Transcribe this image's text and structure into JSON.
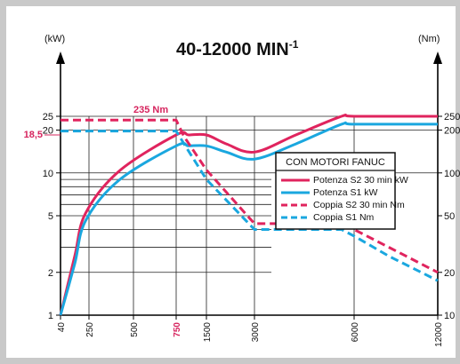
{
  "chart_data": {
    "type": "line",
    "title": "40-12000 MIN",
    "title_superscript": "-1",
    "left_axis_unit": "(kW)",
    "right_axis_unit": "(Nm)",
    "x_scale": "log",
    "x_ticks": [
      "40",
      "250",
      "500",
      "750",
      "1500",
      "3000",
      "6000",
      "12000"
    ],
    "highlight_x_tick": "750",
    "left_y_scale": "log",
    "left_y_ticks": [
      "1",
      "2",
      "5",
      "10",
      "20",
      "25"
    ],
    "left_y_highlight": "18,5",
    "right_y_ticks": [
      "10",
      "20",
      "50",
      "100",
      "200",
      "250"
    ],
    "annotation": "235 Nm",
    "legend_title": "CON MOTORI FANUC",
    "legend_position": "right",
    "grid": true,
    "series": [
      {
        "name": "Potenza S2 30 min kW",
        "axis": "left",
        "style": "solid",
        "color": "#e0245e",
        "x": [
          40,
          100,
          200,
          400,
          750,
          1000,
          1500,
          2000,
          3000,
          4000,
          5500,
          6000,
          12000
        ],
        "y": [
          1,
          2.6,
          5.2,
          10.3,
          18.5,
          18.5,
          18.5,
          16,
          14,
          18.5,
          25,
          25,
          25
        ]
      },
      {
        "name": "Potenza S1 kW",
        "axis": "left",
        "style": "solid",
        "color": "#1aa7df",
        "x": [
          40,
          100,
          200,
          400,
          750,
          1000,
          1500,
          2000,
          3000,
          4000,
          5500,
          6000,
          12000
        ],
        "y": [
          1,
          2.3,
          4.6,
          8.9,
          15.5,
          15.5,
          15.5,
          14,
          12.5,
          16,
          22,
          22,
          22
        ]
      },
      {
        "name": "Coppia S2 30 min Nm",
        "axis": "right",
        "style": "dashed",
        "color": "#e0245e",
        "x": [
          40,
          750,
          900,
          1500,
          3000,
          5500,
          6000,
          8000,
          12000
        ],
        "y": [
          235,
          235,
          180,
          105,
          44,
          44,
          40,
          30,
          20
        ]
      },
      {
        "name": "Coppia S1 Nm",
        "axis": "right",
        "style": "dashed",
        "color": "#1aa7df",
        "x": [
          40,
          750,
          900,
          1500,
          3000,
          5500,
          6000,
          8000,
          12000
        ],
        "y": [
          197,
          197,
          160,
          90,
          40,
          40,
          36,
          26,
          17.5
        ]
      }
    ]
  }
}
